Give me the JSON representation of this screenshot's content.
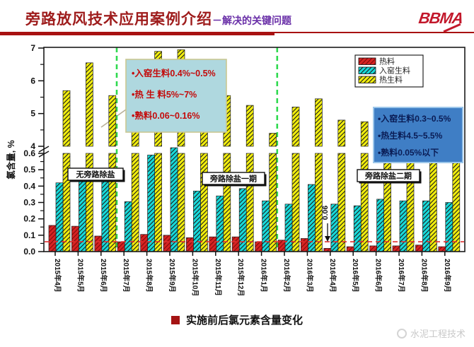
{
  "header": {
    "title_main": "旁路放风技术应用案例介绍",
    "title_sub": "－解决的关键问题",
    "logo_text": "BBMA"
  },
  "caption": {
    "bullet_icon": "red-square",
    "text": "实施前后氯元素含量变化"
  },
  "watermark": {
    "logo_icon": "circular-emblem",
    "text": "水泥工程技术"
  },
  "chart_data": {
    "type": "bar",
    "title": "",
    "ylabel": "氯含量, %",
    "broken_y_axis": {
      "top_range": [
        4,
        7
      ],
      "top_ticks": [
        "4",
        "5",
        "6",
        "7"
      ],
      "bottom_range": [
        0,
        0.6
      ],
      "bottom_ticks": [
        "0.0",
        "0.1",
        "0.2",
        "0.3",
        "0.4",
        "0.5",
        "0.6"
      ]
    },
    "categories": [
      "2015年4月",
      "2015年5月",
      "2015年6月",
      "2015年7月",
      "2015年8月",
      "2015年9月",
      "2015年10月",
      "2015年11月",
      "2015年12月",
      "2016年1月",
      "2016年2月",
      "2016年3月",
      "2016年4月",
      "2016年5月",
      "2016年6月",
      "2016年7月",
      "2016年8月",
      "2016年9月"
    ],
    "series": [
      {
        "name": "热料",
        "color": "#D62222",
        "values": [
          0.16,
          0.155,
          0.095,
          0.06,
          0.105,
          0.1,
          0.085,
          0.09,
          0.09,
          0.06,
          0.07,
          0.08,
          0.02,
          0.03,
          0.035,
          0.035,
          0.04,
          0.03
        ]
      },
      {
        "name": "入窑生料",
        "color": "#17DADA",
        "values": [
          0.42,
          0.43,
          0.445,
          0.305,
          0.59,
          0.645,
          0.37,
          0.34,
          0.385,
          0.31,
          0.29,
          0.41,
          0.29,
          0.28,
          0.32,
          0.31,
          0.31,
          0.3
        ]
      },
      {
        "name": "热生料",
        "color": "#F2EE0C",
        "values": [
          5.7,
          6.55,
          5.55,
          6.2,
          6.9,
          6.95,
          5.6,
          5.55,
          5.25,
          4.4,
          5.2,
          5.45,
          4.8,
          4.75,
          4.9,
          5.0,
          5.05,
          4.65
        ]
      }
    ],
    "legend": {
      "position": "top-right",
      "entries": [
        "热料",
        "入窑生料",
        "热生料"
      ]
    },
    "reference_line": {
      "value": 0.06,
      "color": "#E03030",
      "style": "dashed",
      "label": "0.06"
    },
    "dividers": {
      "color": "#2FD94F",
      "style": "dashed",
      "after_category_index": [
        2,
        9
      ]
    },
    "period_labels": [
      {
        "text": "无旁路除盐"
      },
      {
        "text": "旁路除盐一期"
      },
      {
        "text": "旁路除盐二期"
      }
    ],
    "annotation_boxes": [
      {
        "id": "before-box",
        "bg": "#AFD8DF",
        "border": "#C9C893",
        "text_color": "#C40A0A",
        "lines": [
          "•入窑生料0.4%~0.5%",
          "•热 生 料5%~7%",
          "•熟料0.06~0.16%"
        ]
      },
      {
        "id": "after-box",
        "bg": "#3F7EC5",
        "border": "#9CC6EA",
        "text_color": "#0A1C55",
        "lines": [
          "•入窑生料0.3~0.5%",
          "•热生料4.5~5.5%",
          "•熟料0.05%以下"
        ]
      }
    ]
  }
}
